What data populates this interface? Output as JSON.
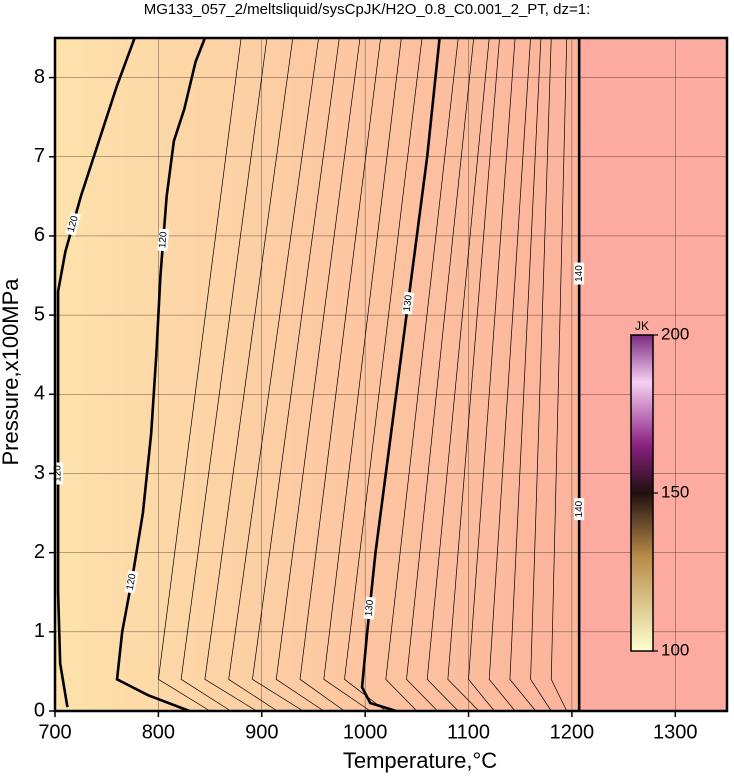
{
  "chart_data": {
    "type": "contour",
    "title": "MG133_057_2/meltsliquid/sysCpJK/H2O_0.8_C0.001_2_PT, dz=1:",
    "x_label": "Temperature,°C",
    "y_label": "Pressure,x100MPa",
    "xlim": [
      700,
      1350
    ],
    "ylim": [
      0,
      8.5
    ],
    "xticks": [
      700,
      800,
      900,
      1000,
      1100,
      1200,
      1300
    ],
    "yticks": [
      0,
      1,
      2,
      3,
      4,
      5,
      6,
      7,
      8
    ],
    "grid": true,
    "contours": [
      {
        "level": 120,
        "x": [
          712,
          705,
          703,
          703,
          703,
          703,
          710,
          725,
          745,
          760,
          777
        ],
        "y": [
          0.05,
          0.6,
          1.5,
          3,
          4,
          5.3,
          5.8,
          6.5,
          7.3,
          7.9,
          8.5
        ]
      },
      {
        "level": 120,
        "x": [
          830,
          790,
          760,
          765,
          775,
          785,
          793,
          798,
          802,
          808,
          815,
          825,
          836,
          845
        ],
        "y": [
          0,
          0.2,
          0.4,
          1,
          1.7,
          2.5,
          3.5,
          4.5,
          5.5,
          6.5,
          7.2,
          7.6,
          8.2,
          8.5
        ]
      },
      {
        "level": 130,
        "x": [
          1030,
          1005,
          997,
          1002,
          1010,
          1020,
          1030,
          1040,
          1050,
          1060,
          1068,
          1072
        ],
        "y": [
          0,
          0.1,
          0.3,
          1,
          2,
          3,
          4,
          5,
          6,
          7,
          8,
          8.5
        ]
      },
      {
        "level": 140,
        "x": [
          1207,
          1207
        ],
        "y": [
          0,
          8.5
        ]
      }
    ],
    "thin_contours": {
      "y": [
        0,
        0.4,
        8.5
      ],
      "x": [
        [
          850,
          800,
          880
        ],
        [
          870,
          822,
          905
        ],
        [
          895,
          845,
          930
        ],
        [
          915,
          868,
          955
        ],
        [
          940,
          891,
          975
        ],
        [
          960,
          914,
          995
        ],
        [
          980,
          937,
          1015
        ],
        [
          1005,
          960,
          1035
        ],
        [
          1020,
          980,
          1055
        ],
        [
          1050,
          1020,
          1090
        ],
        [
          1070,
          1040,
          1105
        ],
        [
          1090,
          1060,
          1120
        ],
        [
          1110,
          1080,
          1130
        ],
        [
          1125,
          1100,
          1145
        ],
        [
          1145,
          1120,
          1160
        ],
        [
          1165,
          1140,
          1170
        ],
        [
          1180,
          1160,
          1180
        ],
        [
          1195,
          1180,
          1195
        ]
      ]
    },
    "colorbar": {
      "label": "JK",
      "lim": [
        100,
        200
      ],
      "ticks": [
        100,
        150,
        200
      ]
    }
  }
}
